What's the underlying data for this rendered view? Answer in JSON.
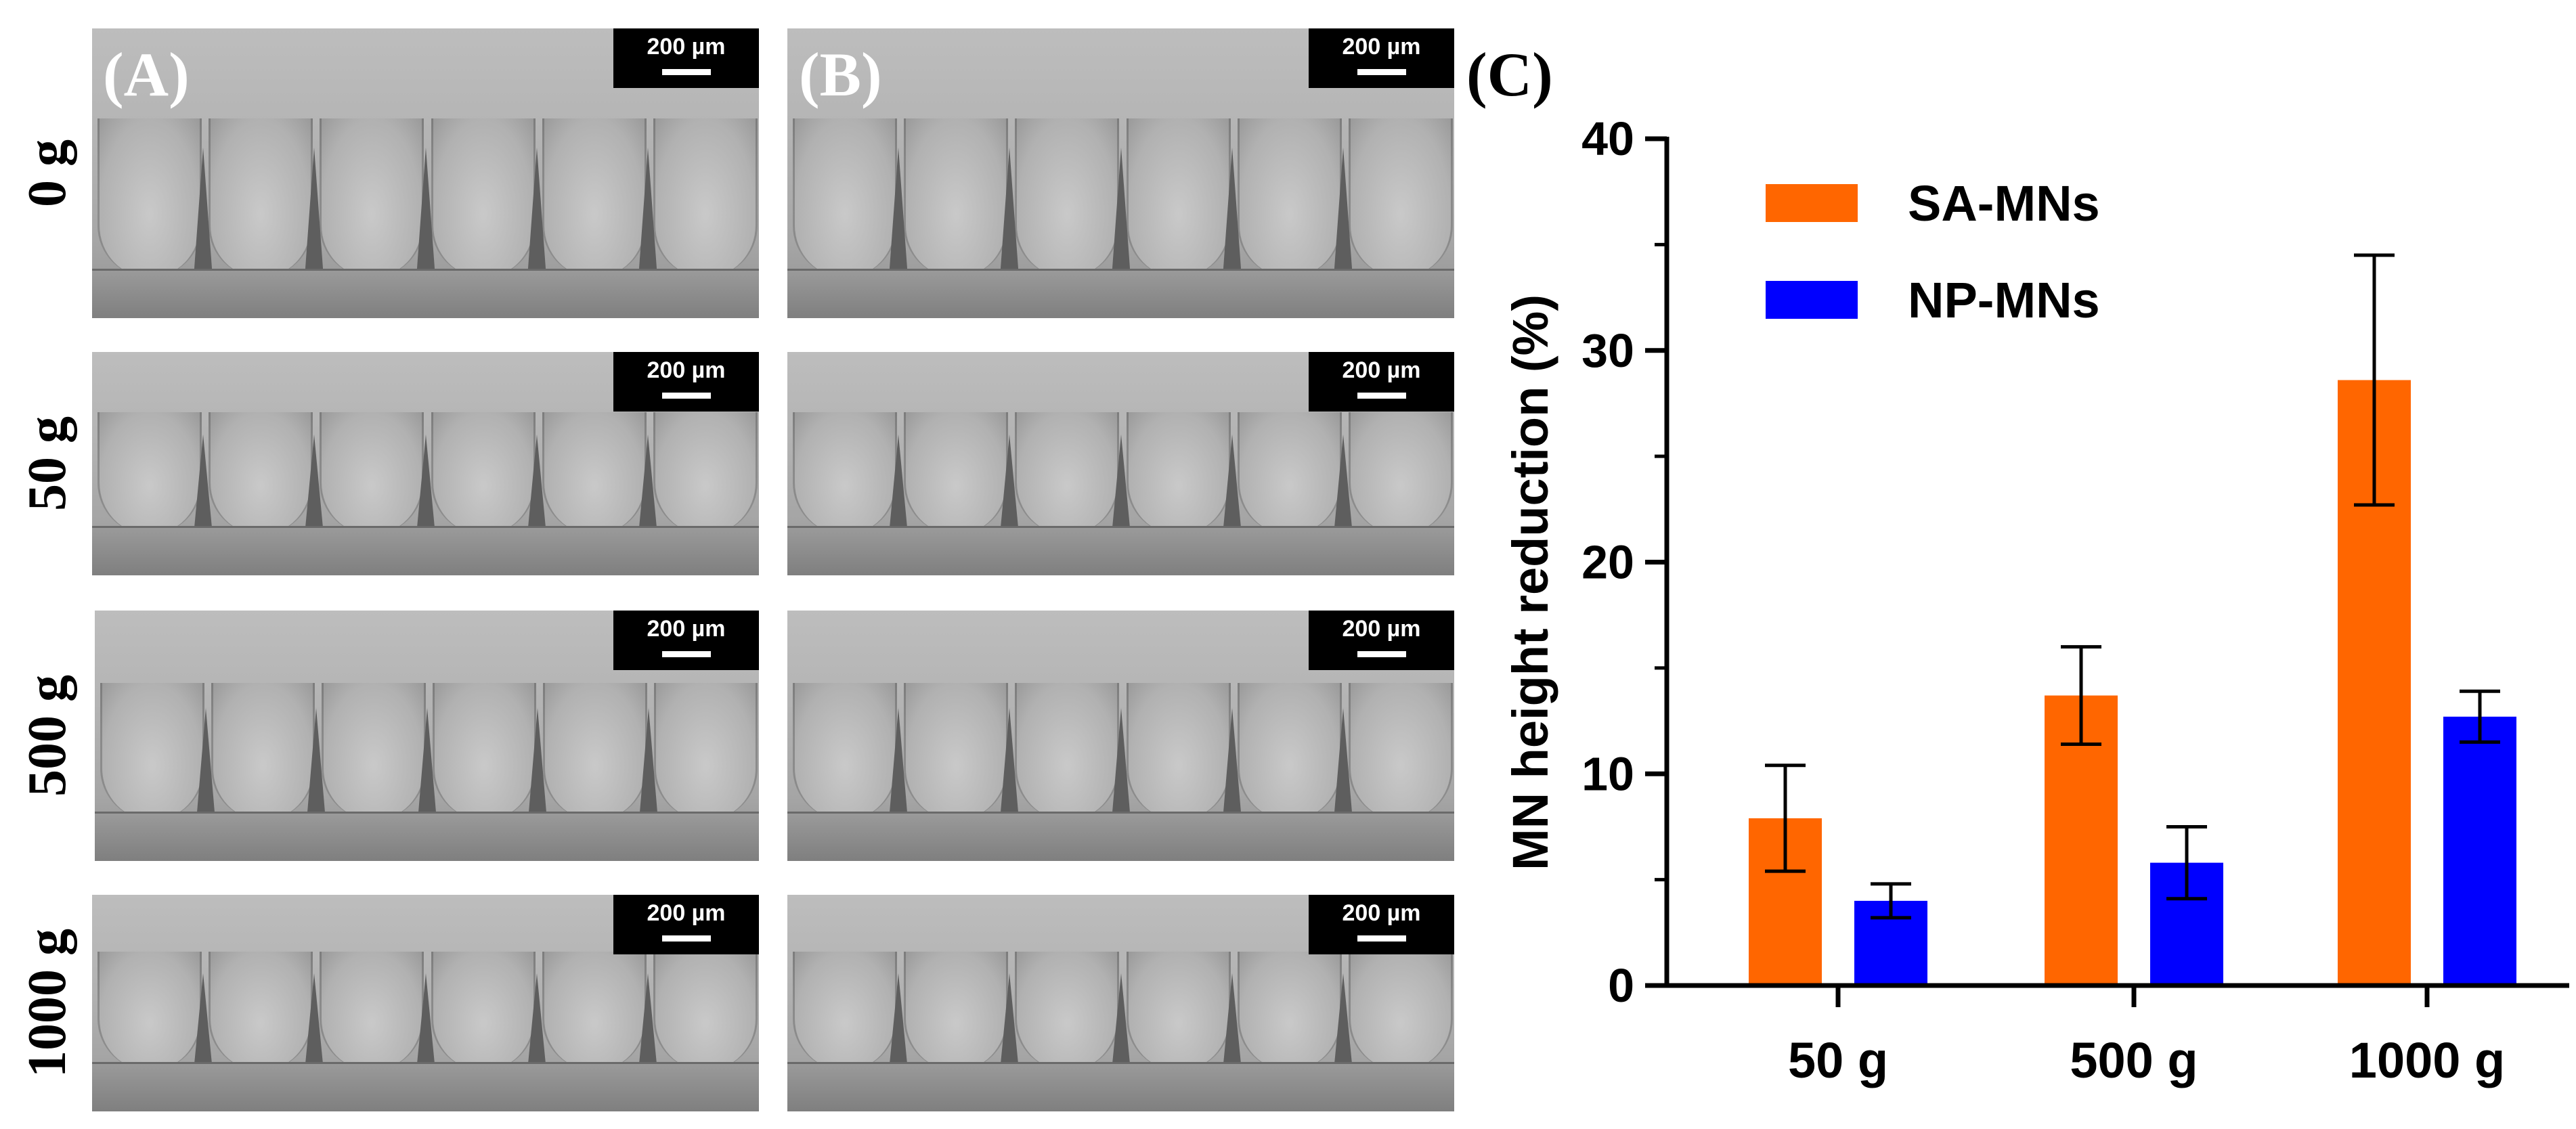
{
  "panels": {
    "A": "(A)",
    "B": "(B)",
    "C": "(C)"
  },
  "row_labels": [
    "0 g",
    "50 g",
    "500 g",
    "1000 g"
  ],
  "scale_bar_label": "200 µm",
  "colors": {
    "sa": "#ff6600",
    "np": "#0000ff",
    "axis": "#000000"
  },
  "chart_data": {
    "type": "bar",
    "title": "",
    "xlabel": "",
    "ylabel": "MN height reduction (%)",
    "categories": [
      "50 g",
      "500 g",
      "1000 g"
    ],
    "series": [
      {
        "name": "SA-MNs",
        "values": [
          7.9,
          13.7,
          28.6
        ],
        "errors": [
          2.5,
          2.3,
          5.9
        ]
      },
      {
        "name": "NP-MNs",
        "values": [
          4.0,
          5.8,
          12.7
        ],
        "errors": [
          0.8,
          1.7,
          1.2
        ]
      }
    ],
    "ylim": [
      0,
      40
    ],
    "yticks": [
      0,
      10,
      20,
      30,
      40
    ],
    "legend_position": "top-left",
    "grid": false
  }
}
